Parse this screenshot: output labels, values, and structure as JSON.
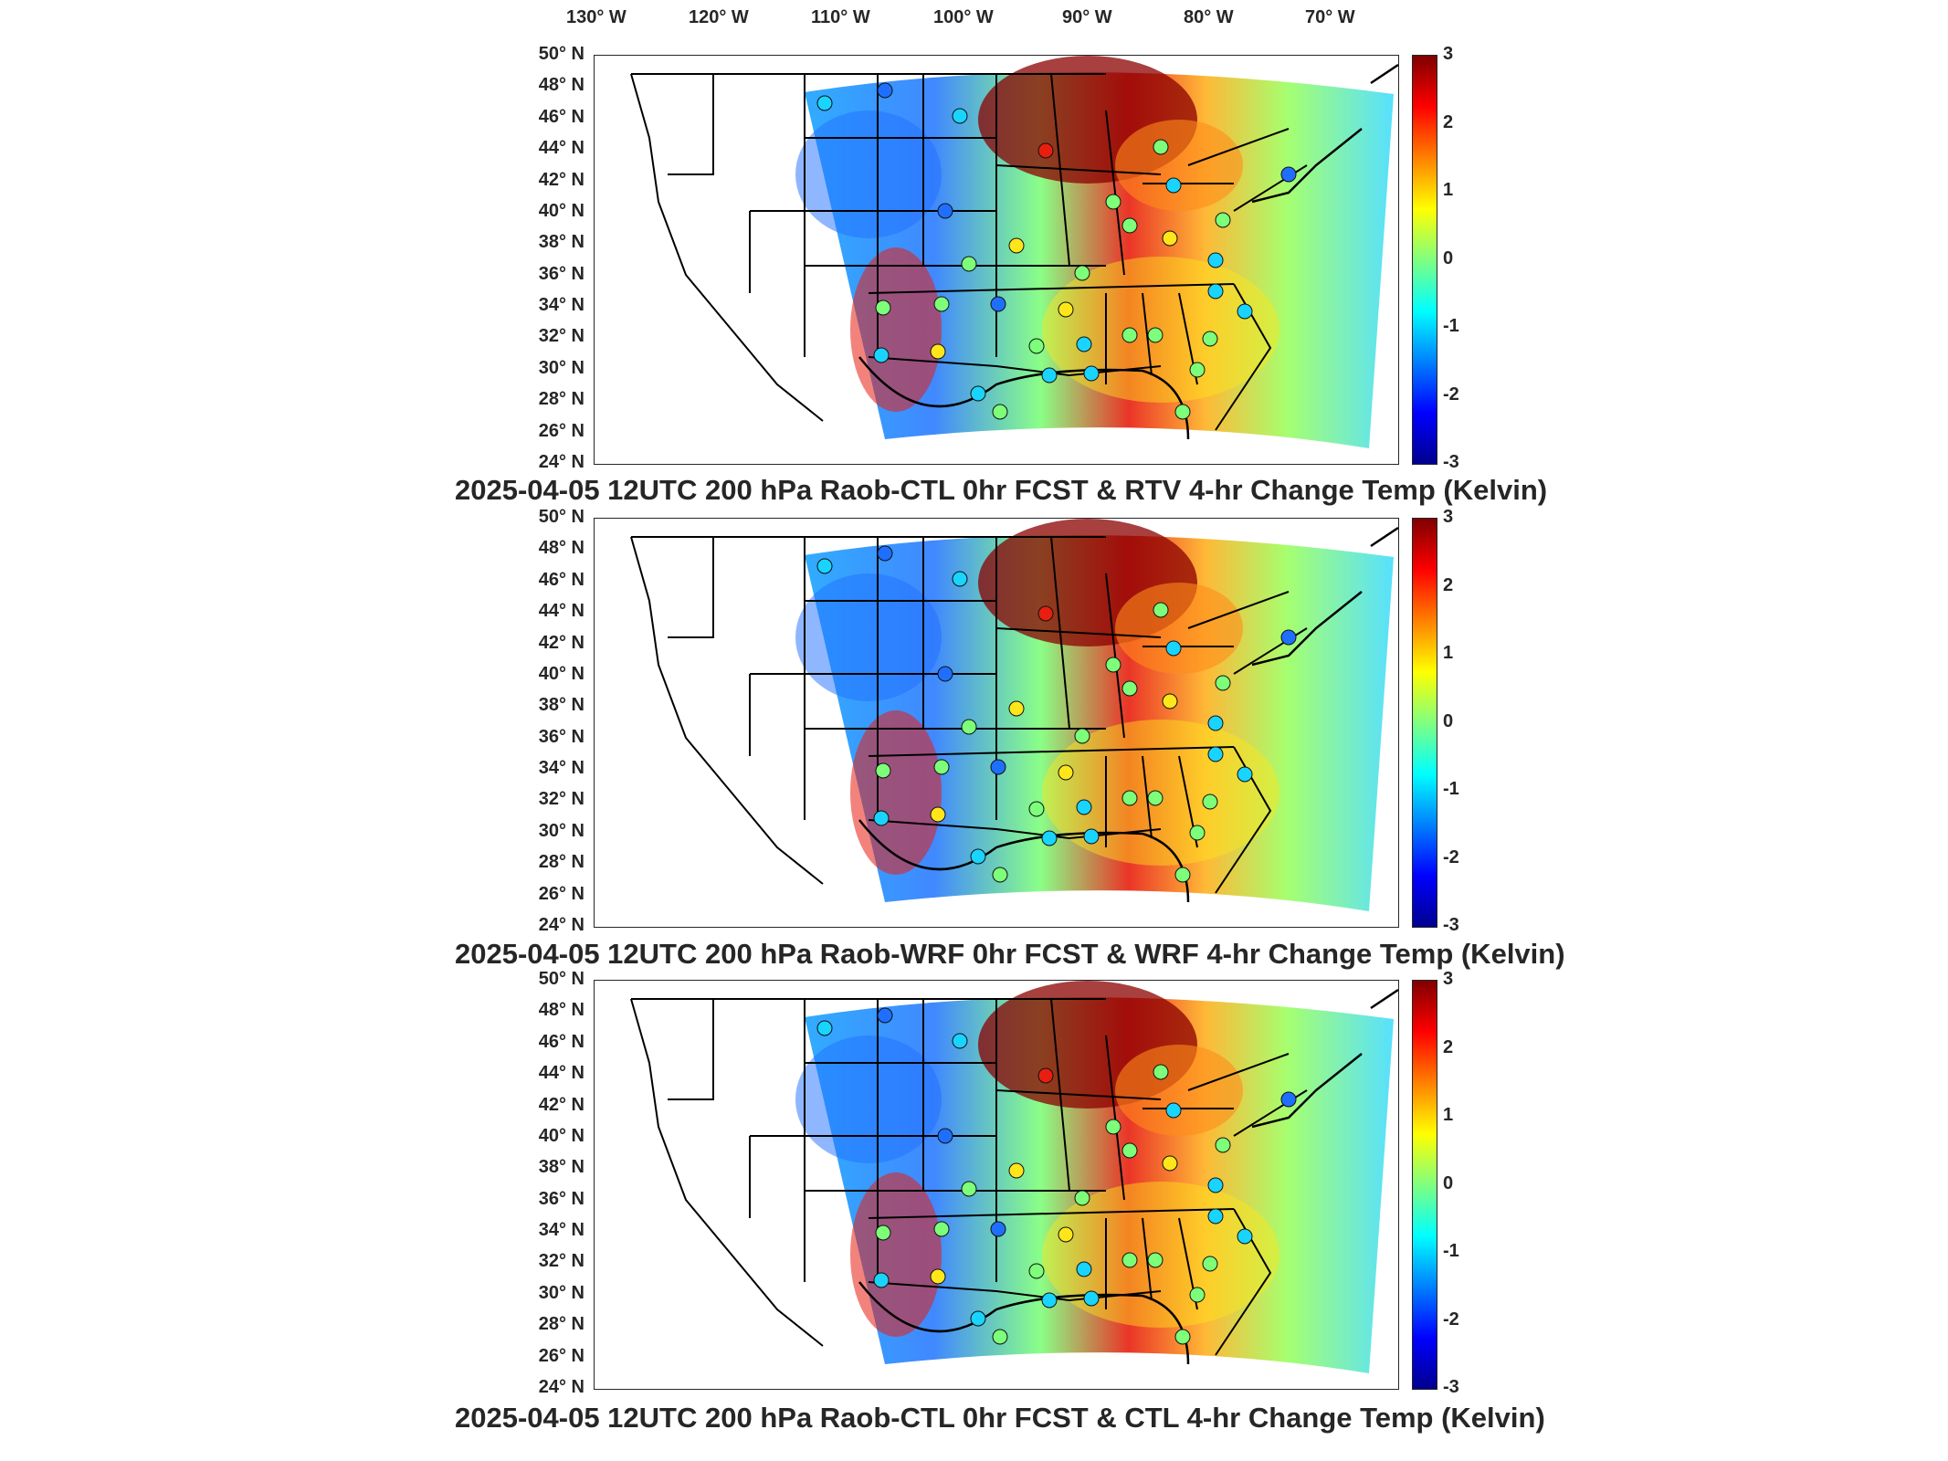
{
  "lon_labels": [
    "130° W",
    "120° W",
    "110° W",
    "100° W",
    "90° W",
    "80° W",
    "70° W"
  ],
  "lat_labels": [
    "50° N",
    "48° N",
    "46° N",
    "44° N",
    "42° N",
    "40° N",
    "38° N",
    "36° N",
    "34° N",
    "32° N",
    "30° N",
    "28° N",
    "26° N",
    "24° N"
  ],
  "colorbar": {
    "ticks": [
      "3",
      "2",
      "1",
      "0",
      "-1",
      "-2",
      "-3"
    ],
    "range": [
      -3,
      3
    ],
    "colormap": "jet"
  },
  "panels": [
    {
      "title": "2025-04-05 12UTC 200 hPa Raob-CTL 0hr FCST & RTV 4-hr Change Temp (Kelvin)"
    },
    {
      "title": "2025-04-05 12UTC 200 hPa Raob-WRF 0hr FCST & WRF 4-hr Change Temp (Kelvin)"
    },
    {
      "title": "2025-04-05 12UTC 200 hPa Raob-CTL 0hr FCST & CTL 4-hr Change Temp (Kelvin)"
    }
  ],
  "colors": {
    "dark_red": "#8b0000",
    "red": "#e81e10",
    "orange": "#ff8c1a",
    "yellow": "#ffe61a",
    "green": "#7dff7a",
    "cyan": "#19d4ff",
    "blue": "#1f6fff",
    "dark_blue": "#0a1fb0"
  }
}
